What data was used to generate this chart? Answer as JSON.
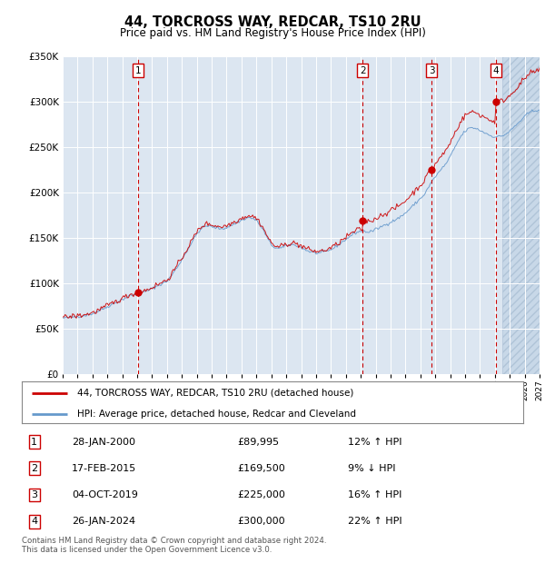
{
  "title": "44, TORCROSS WAY, REDCAR, TS10 2RU",
  "subtitle": "Price paid vs. HM Land Registry's House Price Index (HPI)",
  "legend_label_red": "44, TORCROSS WAY, REDCAR, TS10 2RU (detached house)",
  "legend_label_blue": "HPI: Average price, detached house, Redcar and Cleveland",
  "footer": "Contains HM Land Registry data © Crown copyright and database right 2024.\nThis data is licensed under the Open Government Licence v3.0.",
  "transactions": [
    {
      "num": 1,
      "date": "28-JAN-2000",
      "price": 89995,
      "year": 2000.07,
      "pct": "12%",
      "dir": "↑"
    },
    {
      "num": 2,
      "date": "17-FEB-2015",
      "price": 169500,
      "year": 2015.12,
      "pct": "9%",
      "dir": "↓"
    },
    {
      "num": 3,
      "date": "04-OCT-2019",
      "price": 225000,
      "year": 2019.75,
      "pct": "16%",
      "dir": "↑"
    },
    {
      "num": 4,
      "date": "26-JAN-2024",
      "price": 300000,
      "year": 2024.07,
      "pct": "22%",
      "dir": "↑"
    }
  ],
  "xlim": [
    1995,
    2027
  ],
  "ylim": [
    0,
    350000
  ],
  "yticks": [
    0,
    50000,
    100000,
    150000,
    200000,
    250000,
    300000,
    350000
  ],
  "xticks": [
    1995,
    1996,
    1997,
    1998,
    1999,
    2000,
    2001,
    2002,
    2003,
    2004,
    2005,
    2006,
    2007,
    2008,
    2009,
    2010,
    2011,
    2012,
    2013,
    2014,
    2015,
    2016,
    2017,
    2018,
    2019,
    2020,
    2021,
    2022,
    2023,
    2024,
    2025,
    2026,
    2027
  ],
  "hatched_start": 2024.5,
  "bg_color": "#dce6f1",
  "red_color": "#cc0000",
  "blue_color": "#6699cc",
  "hpi_base_values": [
    62000,
    62200,
    62800,
    63200,
    63800,
    64200,
    65000,
    65800,
    67000,
    68500,
    70500,
    72500,
    74500,
    76500,
    78500,
    80500,
    82500,
    84500,
    86500,
    87500,
    88500,
    89500,
    91000,
    92500,
    94500,
    96500,
    98500,
    100500,
    102500,
    107500,
    113500,
    119500,
    126500,
    133500,
    140500,
    147500,
    154500,
    159500,
    162500,
    163500,
    162500,
    161500,
    160500,
    160500,
    161500,
    163500,
    165500,
    167500,
    169500,
    171500,
    172500,
    171500,
    169500,
    164500,
    157500,
    149500,
    142500,
    139500,
    138500,
    139500,
    141500,
    142500,
    142500,
    141500,
    139500,
    137500,
    135500,
    134500,
    133500,
    133500,
    134500,
    135500,
    137500,
    139500,
    142500,
    145500,
    148500,
    151500,
    154500,
    156500,
    157500,
    157500,
    156500,
    157500,
    159500,
    161500,
    163500,
    165500,
    167500,
    169500,
    171500,
    174500,
    177500,
    181500,
    185500,
    189500,
    193500,
    197500,
    204500,
    211500,
    217500,
    222500,
    227500,
    232500,
    239500,
    247500,
    255500,
    262500,
    267500,
    270500,
    271500,
    270500,
    268500,
    266500,
    264500,
    262500,
    261500,
    261500,
    262500,
    264500,
    267500,
    271500,
    275500,
    279500,
    283500,
    287500,
    289500,
    290500,
    291500
  ]
}
